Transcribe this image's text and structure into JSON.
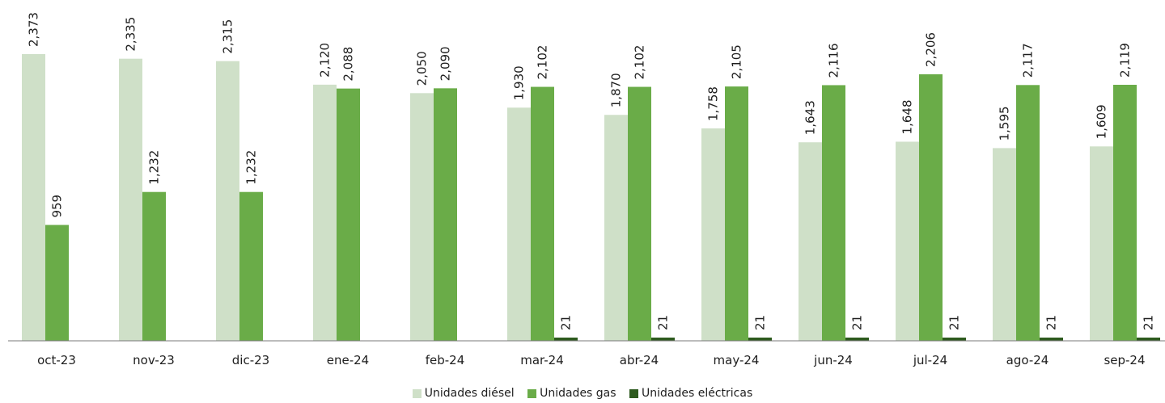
{
  "chart_data": {
    "type": "bar",
    "title": "",
    "xlabel": "",
    "ylabel": "",
    "ylim": [
      0,
      2500
    ],
    "grid": false,
    "legend_position": "bottom",
    "categories": [
      "oct-23",
      "nov-23",
      "dic-23",
      "ene-24",
      "feb-24",
      "mar-24",
      "abr-24",
      "may-24",
      "jun-24",
      "jul-24",
      "ago-24",
      "sep-24"
    ],
    "series": [
      {
        "name": "Unidades diésel",
        "color": "#cfe0c8",
        "values": [
          2373,
          2335,
          2315,
          2120,
          2050,
          1930,
          1870,
          1758,
          1643,
          1648,
          1595,
          1609
        ],
        "labels": [
          "2,373",
          "2,335",
          "2,315",
          "2,120",
          "2,050",
          "1,930",
          "1,870",
          "1,758",
          "1,643",
          "1,648",
          "1,595",
          "1,609"
        ]
      },
      {
        "name": "Unidades gas",
        "color": "#6aac48",
        "values": [
          959,
          1232,
          1232,
          2088,
          2090,
          2102,
          2102,
          2105,
          2116,
          2206,
          2117,
          2119
        ],
        "labels": [
          "959",
          "1,232",
          "1,232",
          "2,088",
          "2,090",
          "2,102",
          "2,102",
          "2,105",
          "2,116",
          "2,206",
          "2,117",
          "2,119"
        ]
      },
      {
        "name": "Unidades eléctricas",
        "color": "#2d5a1e",
        "values": [
          null,
          null,
          null,
          null,
          null,
          21,
          21,
          21,
          21,
          21,
          21,
          21
        ],
        "labels": [
          "",
          "",
          "",
          "",
          "",
          "21",
          "21",
          "21",
          "21",
          "21",
          "21",
          "21"
        ]
      }
    ]
  }
}
